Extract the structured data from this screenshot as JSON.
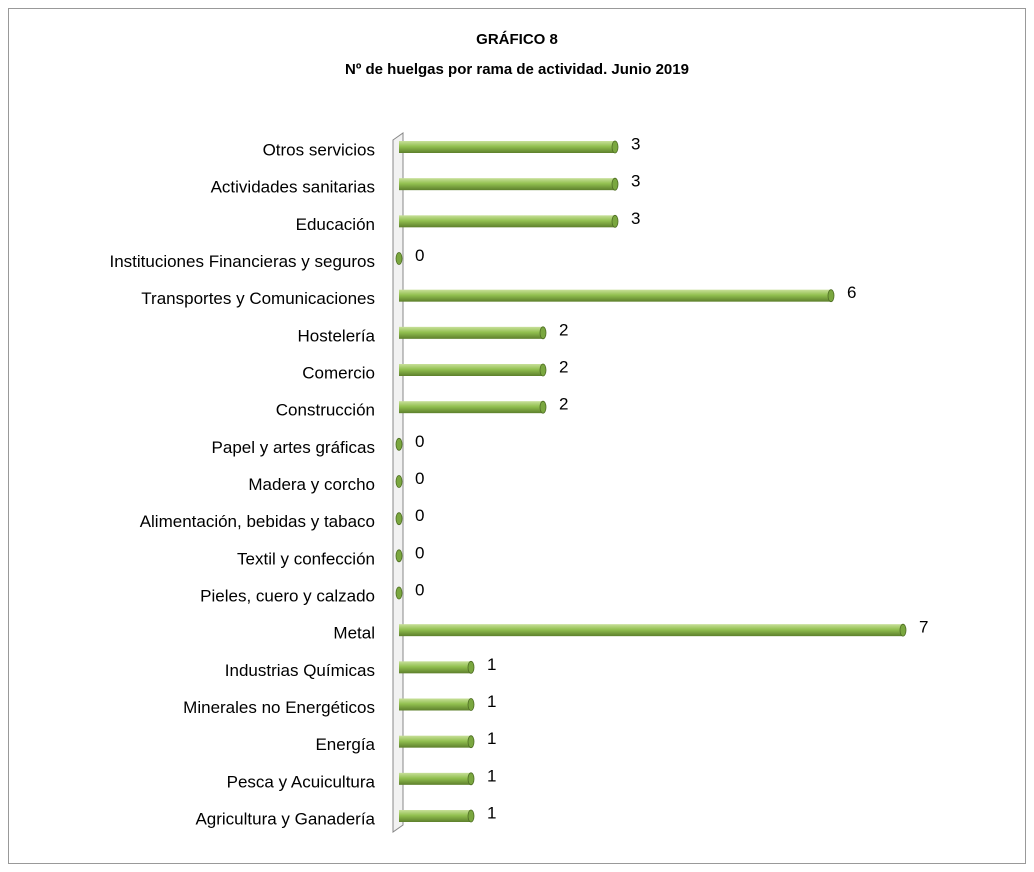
{
  "chart_data": {
    "type": "bar",
    "orientation": "horizontal",
    "title": "GRÁFICO 8",
    "subtitle": "Nº de huelgas por rama de actividad. Junio 2019",
    "categories": [
      "Otros servicios",
      "Actividades sanitarias",
      "Educación",
      "Instituciones Financieras y seguros",
      "Transportes y Comunicaciones",
      "Hostelería",
      "Comercio",
      "Construcción",
      "Papel y artes gráficas",
      "Madera y corcho",
      "Alimentación, bebidas y tabaco",
      "Textil y confección",
      "Pieles, cuero y calzado",
      "Metal",
      "Industrias Químicas",
      "Minerales no Energéticos",
      "Energía",
      "Pesca y Acuicultura",
      "Agricultura y Ganadería"
    ],
    "values": [
      3,
      3,
      3,
      0,
      6,
      2,
      2,
      2,
      0,
      0,
      0,
      0,
      0,
      7,
      1,
      1,
      1,
      1,
      1
    ],
    "color": "#92c050"
  }
}
